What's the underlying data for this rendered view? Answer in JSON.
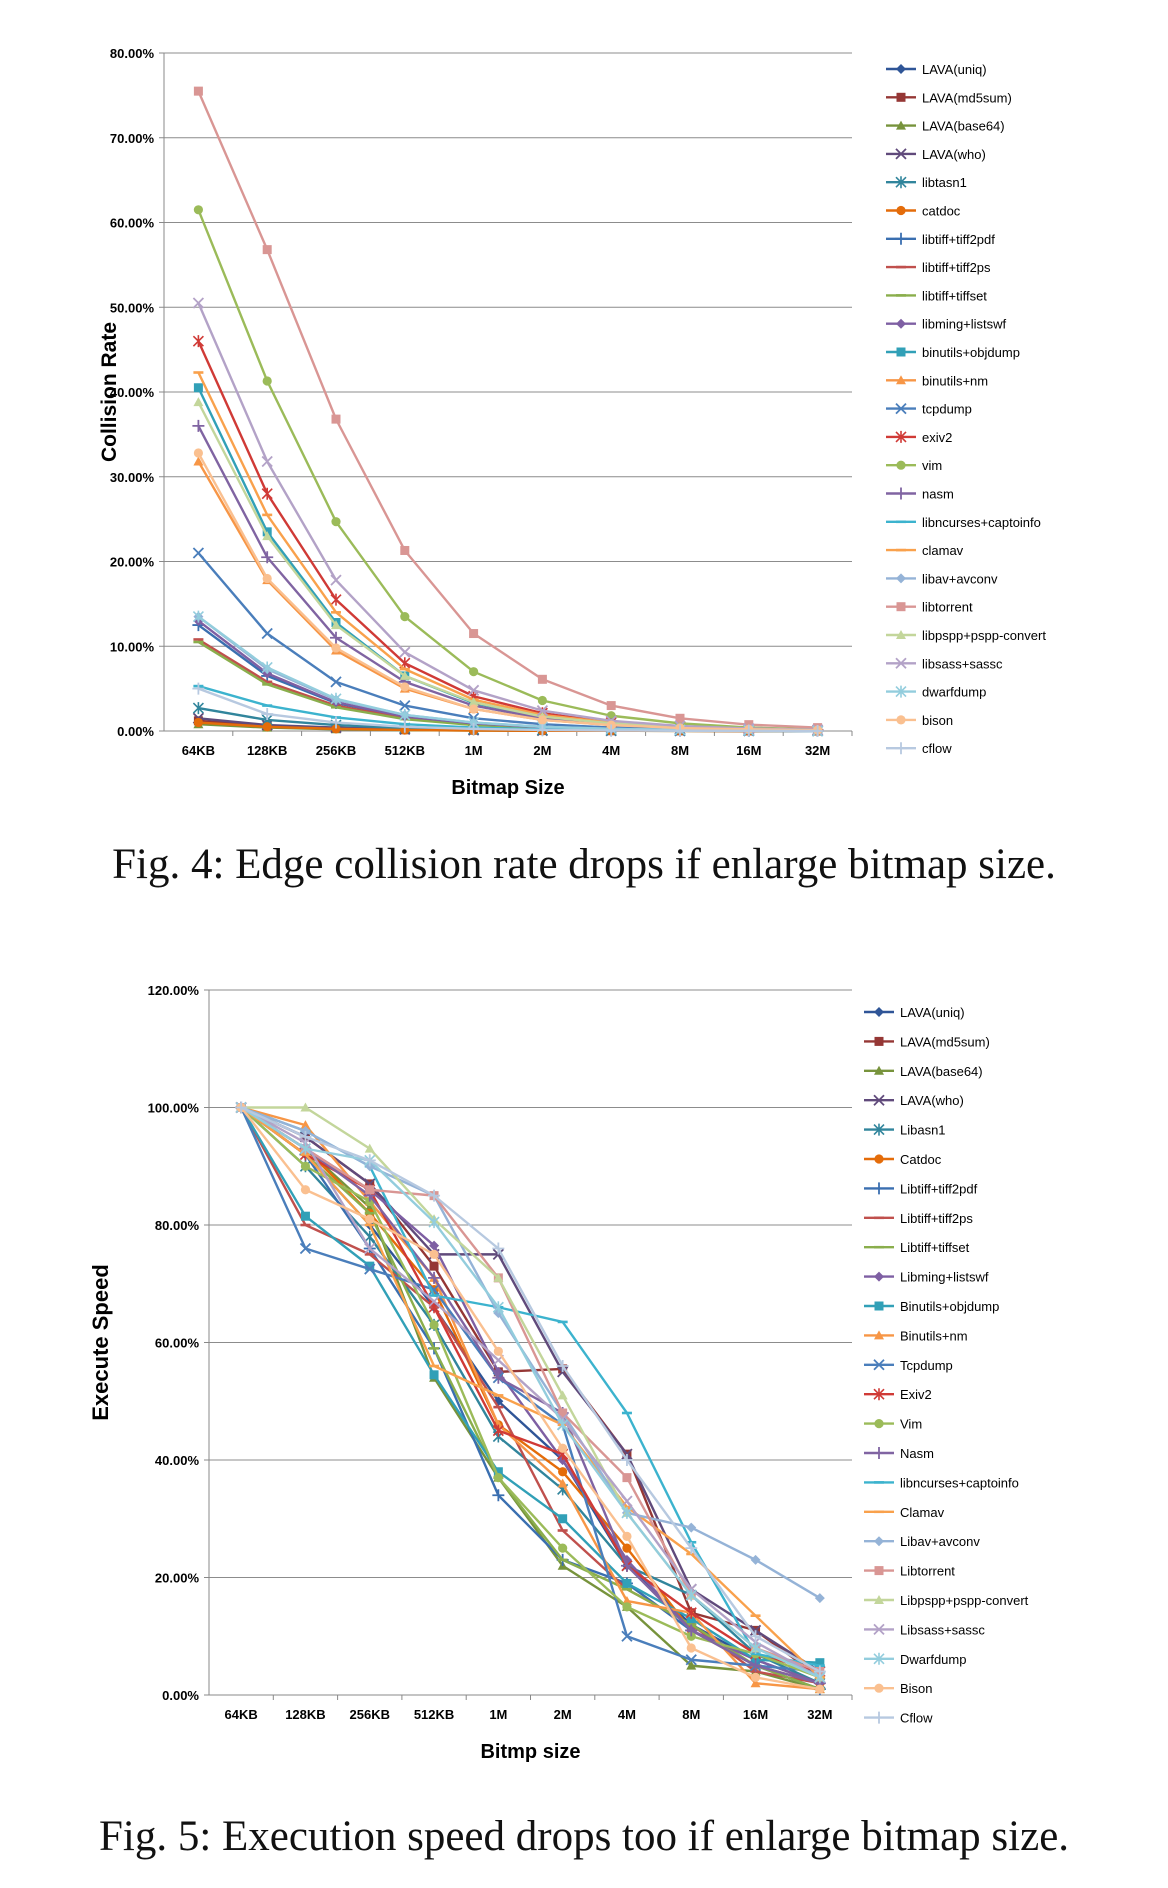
{
  "colors": [
    "#2F5597",
    "#953735",
    "#77933C",
    "#604A7B",
    "#31859C",
    "#E46C0A",
    "#3A6FB0",
    "#C0504D",
    "#8AAE4C",
    "#7E5FA3",
    "#31A0B7",
    "#F79646",
    "#4A7EBB",
    "#D03A36",
    "#9BBB59",
    "#8064A2",
    "#3CB3CE",
    "#F9A14C",
    "#95B3D7",
    "#D99694",
    "#C3D69B",
    "#B3A2C7",
    "#93CDDD",
    "#FAC090",
    "#B7C9E0"
  ],
  "chart_data": [
    {
      "type": "line",
      "ylabel": "Collision Rate",
      "xlabel": "Bitmap Size",
      "caption": "Fig. 4: Edge collision rate drops if enlarge bitmap size.",
      "ylim": [
        0,
        80
      ],
      "yticks": [
        "0.00%",
        "10.00%",
        "20.00%",
        "30.00%",
        "40.00%",
        "50.00%",
        "60.00%",
        "70.00%",
        "80.00%"
      ],
      "categories": [
        "64KB",
        "128KB",
        "256KB",
        "512KB",
        "1M",
        "2M",
        "4M",
        "8M",
        "16M",
        "32M"
      ],
      "grid": true,
      "legend": "right",
      "series": [
        {
          "name": "LAVA(uniq)",
          "marker": "diamond",
          "values": [
            1.0,
            0.5,
            0.3,
            0.15,
            0.1,
            0.05,
            0.03,
            0.02,
            0.01,
            0.0
          ]
        },
        {
          "name": "LAVA(md5sum)",
          "marker": "square",
          "values": [
            1.2,
            0.6,
            0.3,
            0.15,
            0.1,
            0.05,
            0.03,
            0.02,
            0.01,
            0.0
          ]
        },
        {
          "name": "LAVA(base64)",
          "marker": "triangle",
          "values": [
            0.8,
            0.4,
            0.2,
            0.1,
            0.05,
            0.03,
            0.02,
            0.01,
            0.0,
            0.0
          ]
        },
        {
          "name": "LAVA(who)",
          "marker": "x",
          "values": [
            1.5,
            0.7,
            0.4,
            0.2,
            0.1,
            0.05,
            0.03,
            0.02,
            0.01,
            0.0
          ]
        },
        {
          "name": "libtasn1",
          "marker": "star",
          "values": [
            2.7,
            1.3,
            0.7,
            0.35,
            0.2,
            0.1,
            0.05,
            0.03,
            0.02,
            0.0
          ]
        },
        {
          "name": "catdoc",
          "marker": "circle",
          "values": [
            1.0,
            0.5,
            0.25,
            0.12,
            0.06,
            0.03,
            0.02,
            0.01,
            0.0,
            0.0
          ]
        },
        {
          "name": "libtiff+tiff2pdf",
          "marker": "plus",
          "values": [
            12.5,
            6.5,
            3.3,
            1.7,
            0.9,
            0.4,
            0.2,
            0.1,
            0.05,
            0.0
          ]
        },
        {
          "name": "libtiff+tiff2ps",
          "marker": "dash",
          "values": [
            10.8,
            5.8,
            3.0,
            1.5,
            0.8,
            0.4,
            0.2,
            0.1,
            0.05,
            0.0
          ]
        },
        {
          "name": "libtiff+tiffset",
          "marker": "dash",
          "values": [
            10.5,
            5.5,
            2.8,
            1.4,
            0.7,
            0.35,
            0.2,
            0.1,
            0.05,
            0.0
          ]
        },
        {
          "name": "libming+listswf",
          "marker": "diamond",
          "values": [
            13.0,
            6.8,
            3.4,
            1.7,
            0.9,
            0.45,
            0.2,
            0.1,
            0.05,
            0.0
          ]
        },
        {
          "name": "binutils+objdump",
          "marker": "square",
          "values": [
            40.5,
            23.5,
            12.8,
            6.5,
            3.3,
            1.7,
            0.9,
            0.4,
            0.2,
            0.1
          ]
        },
        {
          "name": "binutils+nm",
          "marker": "triangle",
          "values": [
            31.8,
            17.8,
            9.5,
            5.0,
            2.6,
            1.3,
            0.7,
            0.35,
            0.2,
            0.1
          ]
        },
        {
          "name": "tcpdump",
          "marker": "x",
          "values": [
            21.0,
            11.5,
            5.8,
            3.0,
            1.5,
            0.8,
            0.4,
            0.2,
            0.1,
            0.05
          ]
        },
        {
          "name": "exiv2",
          "marker": "star",
          "values": [
            46.0,
            28.0,
            15.5,
            8.0,
            4.1,
            2.1,
            1.0,
            0.5,
            0.25,
            0.1
          ]
        },
        {
          "name": "vim",
          "marker": "circle",
          "values": [
            61.5,
            41.3,
            24.7,
            13.5,
            7.0,
            3.6,
            1.8,
            0.9,
            0.4,
            0.2
          ]
        },
        {
          "name": "nasm",
          "marker": "plus",
          "values": [
            36.0,
            20.5,
            11.0,
            5.8,
            3.0,
            1.5,
            0.8,
            0.4,
            0.2,
            0.1
          ]
        },
        {
          "name": "libncurses+captoinfo",
          "marker": "dash",
          "values": [
            5.3,
            3.0,
            1.6,
            0.8,
            0.4,
            0.2,
            0.1,
            0.05,
            0.02,
            0.0
          ]
        },
        {
          "name": "clamav",
          "marker": "dash",
          "values": [
            42.3,
            25.5,
            14.0,
            7.3,
            3.7,
            1.9,
            1.0,
            0.5,
            0.25,
            0.1
          ]
        },
        {
          "name": "libav+avconv",
          "marker": "diamond",
          "values": [
            13.5,
            7.3,
            3.7,
            1.9,
            1.0,
            0.5,
            0.25,
            0.12,
            0.06,
            0.0
          ]
        },
        {
          "name": "libtorrent",
          "marker": "square",
          "values": [
            75.5,
            56.8,
            36.8,
            21.3,
            11.5,
            6.1,
            3.0,
            1.5,
            0.75,
            0.4
          ]
        },
        {
          "name": "libpspp+pspp-convert",
          "marker": "triangle",
          "values": [
            38.8,
            23.0,
            12.5,
            6.5,
            3.4,
            1.7,
            0.9,
            0.45,
            0.2,
            0.1
          ]
        },
        {
          "name": "libsass+sassc",
          "marker": "x",
          "values": [
            50.5,
            31.8,
            17.8,
            9.3,
            4.8,
            2.4,
            1.2,
            0.6,
            0.3,
            0.15
          ]
        },
        {
          "name": "dwarfdump",
          "marker": "star",
          "values": [
            13.5,
            7.5,
            3.8,
            1.9,
            1.0,
            0.5,
            0.25,
            0.12,
            0.06,
            0.0
          ]
        },
        {
          "name": "bison",
          "marker": "circle",
          "values": [
            32.8,
            18.0,
            9.8,
            5.2,
            2.6,
            1.3,
            0.7,
            0.35,
            0.2,
            0.1
          ]
        },
        {
          "name": "cflow",
          "marker": "plus",
          "values": [
            5.0,
            2.0,
            1.0,
            0.5,
            0.25,
            0.12,
            0.06,
            0.03,
            0.02,
            0.0
          ]
        }
      ]
    },
    {
      "type": "line",
      "ylabel": "Execute Speed",
      "xlabel": "Bitmp size",
      "caption": "Fig. 5: Execution speed drops too if enlarge bitmap size.",
      "ylim": [
        0,
        120
      ],
      "yticks": [
        "0.00%",
        "20.00%",
        "40.00%",
        "60.00%",
        "80.00%",
        "100.00%",
        "120.00%"
      ],
      "categories": [
        "64KB",
        "128KB",
        "256KB",
        "512KB",
        "1M",
        "2M",
        "4M",
        "8M",
        "16M",
        "32M"
      ],
      "grid": true,
      "legend": "right",
      "series": [
        {
          "name": "LAVA(uniq)",
          "marker": "diamond",
          "values": [
            100,
            92,
            80,
            66,
            50,
            40,
            22,
            12,
            6,
            2
          ]
        },
        {
          "name": "LAVA(md5sum)",
          "marker": "square",
          "values": [
            100,
            95,
            87,
            73,
            55,
            55.5,
            41,
            14,
            11,
            3
          ]
        },
        {
          "name": "LAVA(base64)",
          "marker": "triangle",
          "values": [
            100,
            93,
            83,
            54,
            37,
            22,
            15,
            5,
            4,
            1
          ]
        },
        {
          "name": "LAVA(who)",
          "marker": "x",
          "values": [
            100,
            95,
            87,
            75,
            75,
            55,
            41,
            18,
            11,
            4
          ]
        },
        {
          "name": "Libasn1",
          "marker": "star",
          "values": [
            100,
            90,
            78,
            63,
            44,
            35,
            22,
            17,
            7,
            2
          ]
        },
        {
          "name": "Catdoc",
          "marker": "circle",
          "values": [
            100,
            93,
            82,
            69,
            46,
            38,
            25,
            11,
            5,
            2
          ]
        },
        {
          "name": "Libtiff+tiff2pdf",
          "marker": "plus",
          "values": [
            100,
            92,
            76,
            59,
            34,
            23,
            19,
            11,
            5,
            1
          ]
        },
        {
          "name": "Libtiff+tiff2ps",
          "marker": "dash",
          "values": [
            100,
            80,
            75,
            66,
            49,
            28,
            18,
            12,
            4,
            2
          ]
        },
        {
          "name": "Libtiff+tiffset",
          "marker": "dash",
          "values": [
            100,
            92,
            82,
            59,
            37,
            23,
            18,
            12,
            5,
            1
          ]
        },
        {
          "name": "Libming+listswf",
          "marker": "diamond",
          "values": [
            100,
            93,
            86,
            76.5,
            55,
            40,
            23,
            11,
            6,
            2
          ]
        },
        {
          "name": "Binutils+objdump",
          "marker": "square",
          "values": [
            100,
            81.5,
            73,
            54.5,
            38,
            30,
            19,
            13,
            6,
            5.5
          ]
        },
        {
          "name": "Binutils+nm",
          "marker": "triangle",
          "values": [
            100,
            97,
            84,
            71,
            46,
            36,
            16,
            14,
            2,
            1
          ]
        },
        {
          "name": "Tcpdump",
          "marker": "x",
          "values": [
            100,
            76,
            72.5,
            69,
            54,
            46,
            10,
            6,
            5,
            4
          ]
        },
        {
          "name": "Exiv2",
          "marker": "star",
          "values": [
            100,
            92,
            86,
            66,
            45,
            41,
            22,
            14,
            7,
            4
          ]
        },
        {
          "name": "Vim",
          "marker": "circle",
          "values": [
            100,
            90,
            84,
            63,
            37,
            25,
            15,
            10,
            7,
            3
          ]
        },
        {
          "name": "Nasm",
          "marker": "plus",
          "values": [
            100,
            93,
            85,
            71,
            54,
            48,
            22,
            11,
            5,
            2
          ]
        },
        {
          "name": "libncurses+captoinfo",
          "marker": "dash",
          "values": [
            100,
            96,
            90,
            68,
            66,
            63.5,
            48,
            26,
            7,
            5
          ]
        },
        {
          "name": "Clamav",
          "marker": "dash",
          "values": [
            100,
            92,
            80,
            56,
            51,
            46,
            32,
            24,
            13.5,
            3
          ]
        },
        {
          "name": "Libav+avconv",
          "marker": "diamond",
          "values": [
            100,
            96,
            90,
            85,
            65,
            48,
            31,
            28.5,
            23,
            16.5
          ]
        },
        {
          "name": "Libtorrent",
          "marker": "square",
          "values": [
            100,
            93,
            86,
            85,
            71,
            48,
            37,
            17,
            8,
            4
          ]
        },
        {
          "name": "Libpspp+pspp-convert",
          "marker": "triangle",
          "values": [
            100,
            100,
            93,
            81,
            71,
            51,
            31,
            17,
            8,
            3
          ]
        },
        {
          "name": "Libsass+sassc",
          "marker": "x",
          "values": [
            100,
            94,
            76,
            67,
            57,
            47,
            33,
            18,
            9,
            3
          ]
        },
        {
          "name": "Dwarfdump",
          "marker": "star",
          "values": [
            100,
            93,
            91,
            80.5,
            66,
            46,
            31,
            17,
            8,
            3
          ]
        },
        {
          "name": "Bison",
          "marker": "circle",
          "values": [
            100,
            86,
            81,
            75,
            58.5,
            42,
            27,
            8,
            3,
            1
          ]
        },
        {
          "name": "Cflow",
          "marker": "plus",
          "values": [
            100,
            95,
            91,
            85,
            76,
            56,
            40,
            25,
            10,
            4
          ]
        }
      ]
    }
  ]
}
